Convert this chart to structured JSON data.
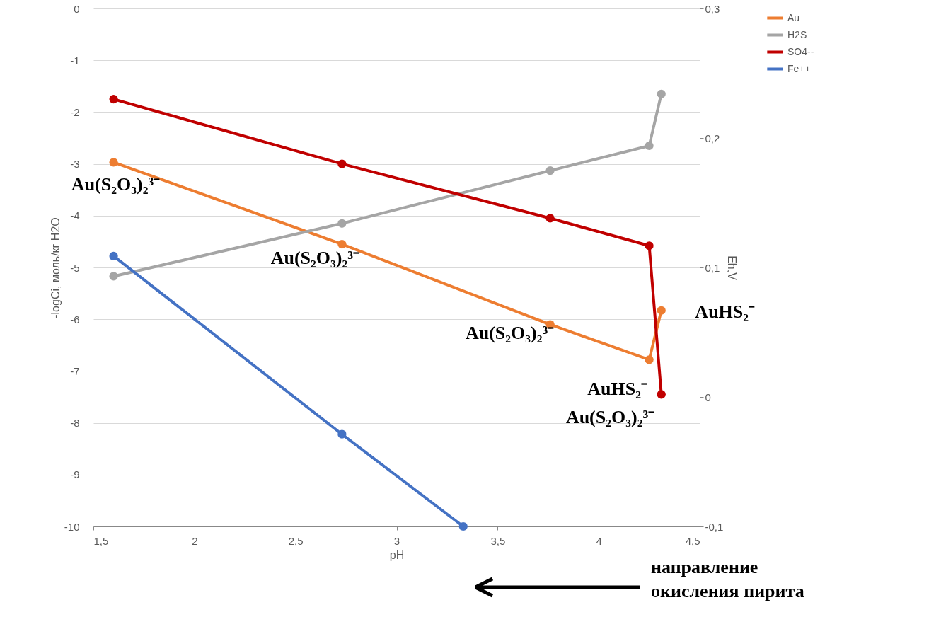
{
  "chart_data": {
    "type": "line",
    "xlabel": "pH",
    "ylabel": "-logCi, моль/кг H2O",
    "y2label": "Eh,V",
    "xlim": [
      1.5,
      4.5
    ],
    "xticks": [
      {
        "value": 1.5,
        "label": "1,5"
      },
      2,
      {
        "value": 2.5,
        "label": "2,5"
      },
      3,
      {
        "value": 3.5,
        "label": "3,5"
      },
      4,
      {
        "value": 4.5,
        "label": "4,5"
      }
    ],
    "ylim": [
      -10,
      0
    ],
    "yticks": [
      0,
      -1,
      -2,
      -3,
      -4,
      -5,
      -6,
      -7,
      -8,
      -9,
      -10
    ],
    "y2lim": [
      -0.1,
      0.3
    ],
    "y2ticks": [
      {
        "value": 0.3,
        "label": "0,3"
      },
      {
        "value": 0.2,
        "label": "0,2"
      },
      {
        "value": 0.1,
        "label": "0,1"
      },
      0,
      {
        "value": -0.1,
        "label": "-0,1"
      }
    ],
    "grid": "y",
    "legend": "right",
    "marker": "circle",
    "series": [
      {
        "name": "Au",
        "color": "#ed7d31",
        "x": [
          1.6,
          2.73,
          3.76,
          4.25,
          4.31
        ],
        "values": [
          -2.97,
          -4.55,
          -6.1,
          -6.78,
          -5.83
        ]
      },
      {
        "name": "H2S",
        "color": "#a5a5a5",
        "x": [
          1.6,
          2.73,
          3.76,
          4.25,
          4.31
        ],
        "values": [
          -5.17,
          -4.15,
          -3.13,
          -2.65,
          -1.65
        ]
      },
      {
        "name": "SO4--",
        "color": "#c00000",
        "x": [
          1.6,
          2.73,
          3.76,
          4.25,
          4.31
        ],
        "values": [
          -1.75,
          -3.0,
          -4.05,
          -4.58,
          -7.45
        ]
      },
      {
        "name": "Fe++",
        "color": "#4472c4",
        "x": [
          1.6,
          2.73,
          3.33
        ],
        "values": [
          -4.78,
          -8.22,
          -10
        ]
      }
    ],
    "annotations": [
      {
        "text": "Au(S₂O₃)₂³⁻",
        "x": 1.6,
        "y": -2.97
      },
      {
        "text": "Au(S₂O₃)₂³⁻",
        "x": 2.73,
        "y": -4.55
      },
      {
        "text": "Au(S₂O₃)₂³⁻",
        "x": 3.76,
        "y": -6.1
      },
      {
        "text": "AuHS₂⁻",
        "x": 4.31,
        "y": -5.83
      },
      {
        "text": "AuHS₂⁻",
        "x": 4.25,
        "y": -6.78
      },
      {
        "text": "Au(S₂O₃)₂³⁻",
        "x": 4.25,
        "y": -6.78
      },
      "направление окисления пирита"
    ]
  }
}
